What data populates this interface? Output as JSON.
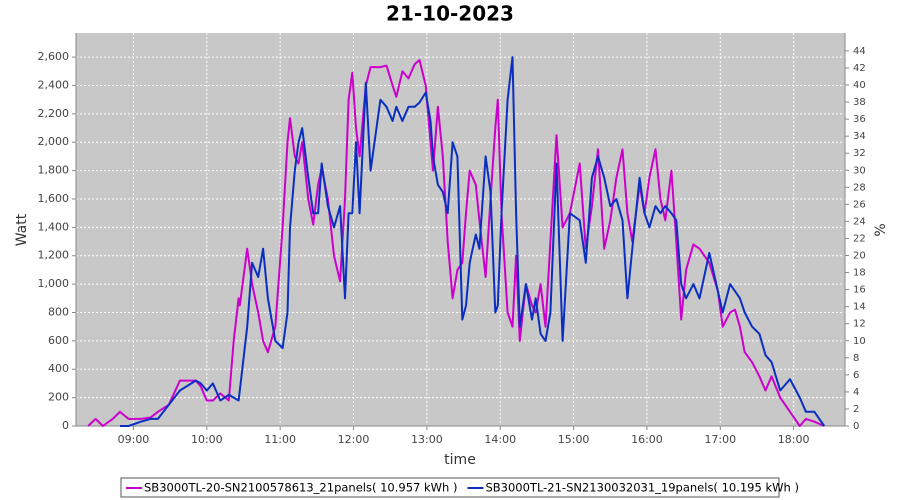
{
  "chart_data": {
    "type": "line",
    "title": "21-10-2023",
    "x_label": "time",
    "y_label": "Watt",
    "y2_label": "%",
    "xlim": [
      "08:13",
      "18:42"
    ],
    "xticks": [
      "09:00",
      "10:00",
      "11:00",
      "12:00",
      "13:00",
      "14:00",
      "15:00",
      "16:00",
      "17:00",
      "18:00"
    ],
    "ylim": [
      0,
      2770
    ],
    "yticks": [
      0,
      200,
      400,
      600,
      800,
      {
        "value": 1000,
        "label": "1,000"
      },
      {
        "value": 1200,
        "label": "1,200"
      },
      {
        "value": 1400,
        "label": "1,400"
      },
      {
        "value": 1600,
        "label": "1,600"
      },
      {
        "value": 1800,
        "label": "1,800"
      },
      {
        "value": 2000,
        "label": "2,000"
      },
      {
        "value": 2200,
        "label": "2,200"
      },
      {
        "value": 2400,
        "label": "2,400"
      },
      {
        "value": 2600,
        "label": "2,600"
      }
    ],
    "y2lim": [
      0,
      46.1
    ],
    "y2ticks": [
      0,
      2,
      4,
      6,
      8,
      10,
      12,
      14,
      16,
      18,
      20,
      22,
      24,
      26,
      28,
      30,
      32,
      34,
      36,
      38,
      40,
      42,
      44
    ],
    "grid": true,
    "legend": "bottom",
    "x": [
      "08:23",
      "08:29",
      "08:35",
      "08:43",
      "08:49",
      "08:56",
      "09:06",
      "09:14",
      "09:20",
      "09:29",
      "09:38",
      "09:51",
      "09:55",
      "10:00",
      "10:05",
      "10:11",
      "10:18",
      "10:22",
      "10:26",
      "10:27",
      "10:33",
      "10:37",
      "10:42",
      "10:46",
      "10:50",
      "10:56",
      "11:02",
      "11:06",
      "11:08",
      "11:12",
      "11:15",
      "11:18",
      "11:23",
      "11:27",
      "11:31",
      "11:34",
      "11:39",
      "11:44",
      "11:49",
      "11:53",
      "11:56",
      "11:59",
      "12:02",
      "12:05",
      "12:10",
      "12:14",
      "12:22",
      "12:27",
      "12:32",
      "12:35",
      "12:40",
      "12:45",
      "12:50",
      "12:54",
      "12:59",
      "13:03",
      "13:05",
      "13:09",
      "13:13",
      "13:17",
      "13:21",
      "13:25",
      "13:29",
      "13:32",
      "13:35",
      "13:40",
      "13:43",
      "13:48",
      "13:52",
      "13:56",
      "13:58",
      "14:01",
      "14:06",
      "14:10",
      "14:13",
      "14:16",
      "14:21",
      "14:26",
      "14:29",
      "14:33",
      "14:37",
      "14:41",
      "14:46",
      "14:51",
      "14:57",
      "15:05",
      "15:10",
      "15:15",
      "15:20",
      "15:25",
      "15:30",
      "15:35",
      "15:40",
      "15:44",
      "15:48",
      "15:54",
      "15:58",
      "16:02",
      "16:07",
      "16:11",
      "16:15",
      "16:20",
      "16:24",
      "16:28",
      "16:32",
      "16:38",
      "16:43",
      "16:51",
      "16:58",
      "17:02",
      "17:08",
      "17:12",
      "17:16",
      "17:20",
      "17:26",
      "17:32",
      "17:37",
      "17:42",
      "17:49",
      "17:57",
      "18:05",
      "18:10",
      "18:17",
      "18:25"
    ],
    "series": [
      {
        "name": "SB3000TL-20-SN2100578613_21panels( 10.957 kWh )",
        "color": "#cc00cc",
        "values": [
          0,
          50,
          0,
          50,
          100,
          50,
          50,
          60,
          100,
          150,
          320,
          320,
          280,
          180,
          180,
          230,
          180,
          600,
          900,
          850,
          1250,
          1000,
          800,
          600,
          520,
          700,
          1400,
          2000,
          2170,
          1900,
          1850,
          2000,
          1600,
          1420,
          1700,
          1820,
          1600,
          1200,
          1020,
          1600,
          2300,
          2490,
          2100,
          1900,
          2400,
          2530,
          2530,
          2540,
          2400,
          2320,
          2500,
          2450,
          2550,
          2580,
          2400,
          2000,
          1800,
          2250,
          1900,
          1300,
          900,
          1100,
          1150,
          1500,
          1800,
          1700,
          1450,
          1050,
          1600,
          2100,
          2300,
          1500,
          800,
          700,
          1200,
          600,
          1000,
          850,
          800,
          1000,
          700,
          1300,
          2050,
          1400,
          1500,
          1850,
          1250,
          1550,
          1950,
          1250,
          1450,
          1750,
          1950,
          1500,
          1300,
          1700,
          1500,
          1750,
          1950,
          1600,
          1450,
          1800,
          1300,
          750,
          1100,
          1280,
          1250,
          1150,
          950,
          700,
          800,
          820,
          700,
          520,
          450,
          350,
          250,
          350,
          200,
          100,
          0,
          50,
          30,
          0
        ]
      },
      {
        "name": "SB3000TL-21-SN2130032031_19panels( 10.195 kWh )",
        "color": "#0a2fc0",
        "values": [
          null,
          null,
          null,
          null,
          0,
          0,
          30,
          50,
          50,
          150,
          250,
          320,
          300,
          250,
          300,
          180,
          220,
          200,
          180,
          250,
          700,
          1150,
          1050,
          1250,
          900,
          600,
          550,
          800,
          1400,
          1800,
          2000,
          2100,
          1750,
          1500,
          1500,
          1850,
          1550,
          1400,
          1550,
          900,
          1500,
          1500,
          2000,
          1500,
          2420,
          1800,
          2300,
          2250,
          2150,
          2250,
          2150,
          2250,
          2250,
          2280,
          2350,
          2150,
          1900,
          1700,
          1650,
          1500,
          2000,
          1900,
          750,
          850,
          1150,
          1350,
          1250,
          1900,
          1650,
          800,
          850,
          1500,
          2300,
          2600,
          1500,
          700,
          1000,
          750,
          900,
          650,
          600,
          800,
          1850,
          600,
          1500,
          1450,
          1150,
          1750,
          1900,
          1750,
          1550,
          1600,
          1450,
          900,
          1250,
          1750,
          1500,
          1400,
          1550,
          1500,
          1550,
          1500,
          1450,
          1000,
          900,
          1000,
          900,
          1220,
          950,
          800,
          1000,
          950,
          900,
          800,
          700,
          650,
          500,
          450,
          250,
          330,
          200,
          100,
          100,
          0
        ]
      }
    ]
  }
}
